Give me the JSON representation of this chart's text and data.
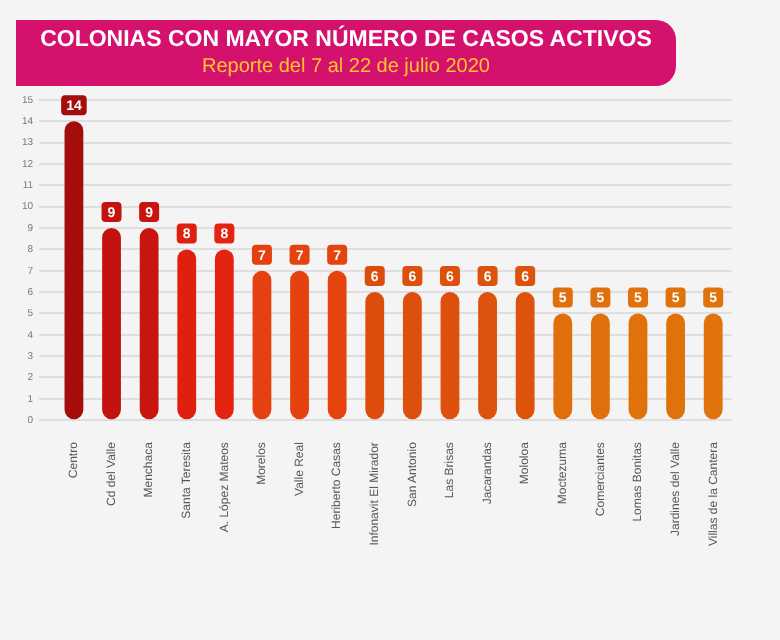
{
  "chart_data": {
    "type": "bar",
    "title": "COLONIAS CON MAYOR NÚMERO DE CASOS ACTIVOS",
    "subtitle": "Reporte del 7 al 22 de julio 2020",
    "categories": [
      "Centro",
      "Cd del Valle",
      "Menchaca",
      "Santa Teresita",
      "A. López Mateos",
      "Morelos",
      "Valle Real",
      "Heriberto Casas",
      "Infonavit El Mirador",
      "San Antonio",
      "Las Brisas",
      "Jacarandas",
      "Mololoa",
      "Moctezuma",
      "Comerciantes",
      "Lomas Bonitas",
      "Jardines del Valle",
      "Villas de la Cantera"
    ],
    "values": [
      14,
      9,
      9,
      8,
      8,
      7,
      7,
      7,
      6,
      6,
      6,
      6,
      6,
      5,
      5,
      5,
      5,
      5
    ],
    "colors": [
      "#a50d0d",
      "#c4120f",
      "#c81510",
      "#e0200f",
      "#e42410",
      "#e63f10",
      "#e6420f",
      "#e5440e",
      "#dc4d0c",
      "#dd4f0c",
      "#dd510c",
      "#dd520c",
      "#dd530c",
      "#e06e0b",
      "#e0700b",
      "#e0710b",
      "#e0720b",
      "#e0730b"
    ],
    "ylim": [
      0,
      15
    ],
    "yticks": [
      0,
      1,
      2,
      3,
      4,
      5,
      6,
      7,
      8,
      9,
      10,
      11,
      12,
      13,
      14,
      15
    ],
    "grid": "y",
    "data_labels": true
  }
}
